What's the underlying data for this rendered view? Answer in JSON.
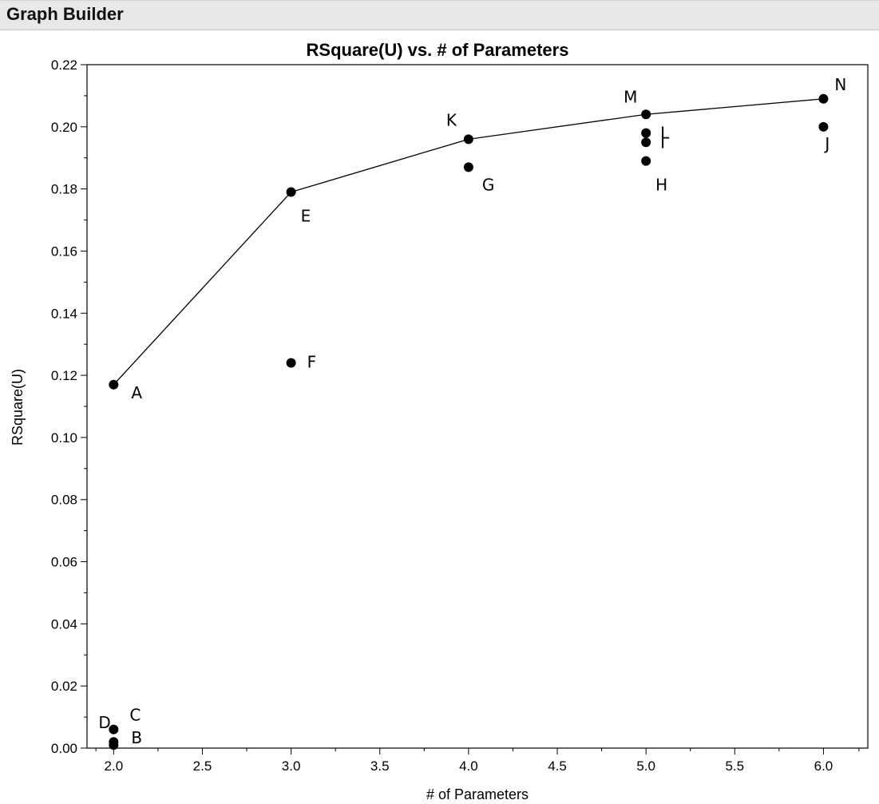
{
  "window": {
    "title": "Graph Builder"
  },
  "chart_data": {
    "type": "scatter",
    "title": "RSquare(U) vs. # of Parameters",
    "xlabel": "# of Parameters",
    "ylabel": "RSquare(U)",
    "xlim": [
      1.85,
      6.25
    ],
    "ylim": [
      0,
      0.22
    ],
    "x_ticks": [
      "2.0",
      "2.5",
      "3.0",
      "3.5",
      "4.0",
      "4.5",
      "5.0",
      "5.5",
      "6.0"
    ],
    "y_ticks": [
      "0.00",
      "0.02",
      "0.04",
      "0.06",
      "0.08",
      "0.10",
      "0.12",
      "0.14",
      "0.16",
      "0.18",
      "0.20",
      "0.22"
    ],
    "points": [
      {
        "label": "A",
        "x": 2,
        "y": 0.117
      },
      {
        "label": "B",
        "x": 2,
        "y": 0.001
      },
      {
        "label": "C",
        "x": 2,
        "y": 0.006
      },
      {
        "label": "D",
        "x": 2,
        "y": 0.002
      },
      {
        "label": "E",
        "x": 3,
        "y": 0.179
      },
      {
        "label": "F",
        "x": 3,
        "y": 0.124
      },
      {
        "label": "G",
        "x": 4,
        "y": 0.187
      },
      {
        "label": "H",
        "x": 5,
        "y": 0.189
      },
      {
        "label": "I",
        "x": 5,
        "y": 0.195
      },
      {
        "label": "J",
        "x": 6,
        "y": 0.2
      },
      {
        "label": "K",
        "x": 4,
        "y": 0.196
      },
      {
        "label": "L",
        "x": 5,
        "y": 0.198
      },
      {
        "label": "M",
        "x": 5,
        "y": 0.204
      },
      {
        "label": "N",
        "x": 6,
        "y": 0.209
      }
    ],
    "frontier_line": [
      "A",
      "E",
      "K",
      "M",
      "N"
    ],
    "grid": false,
    "point_color": "#000000"
  }
}
